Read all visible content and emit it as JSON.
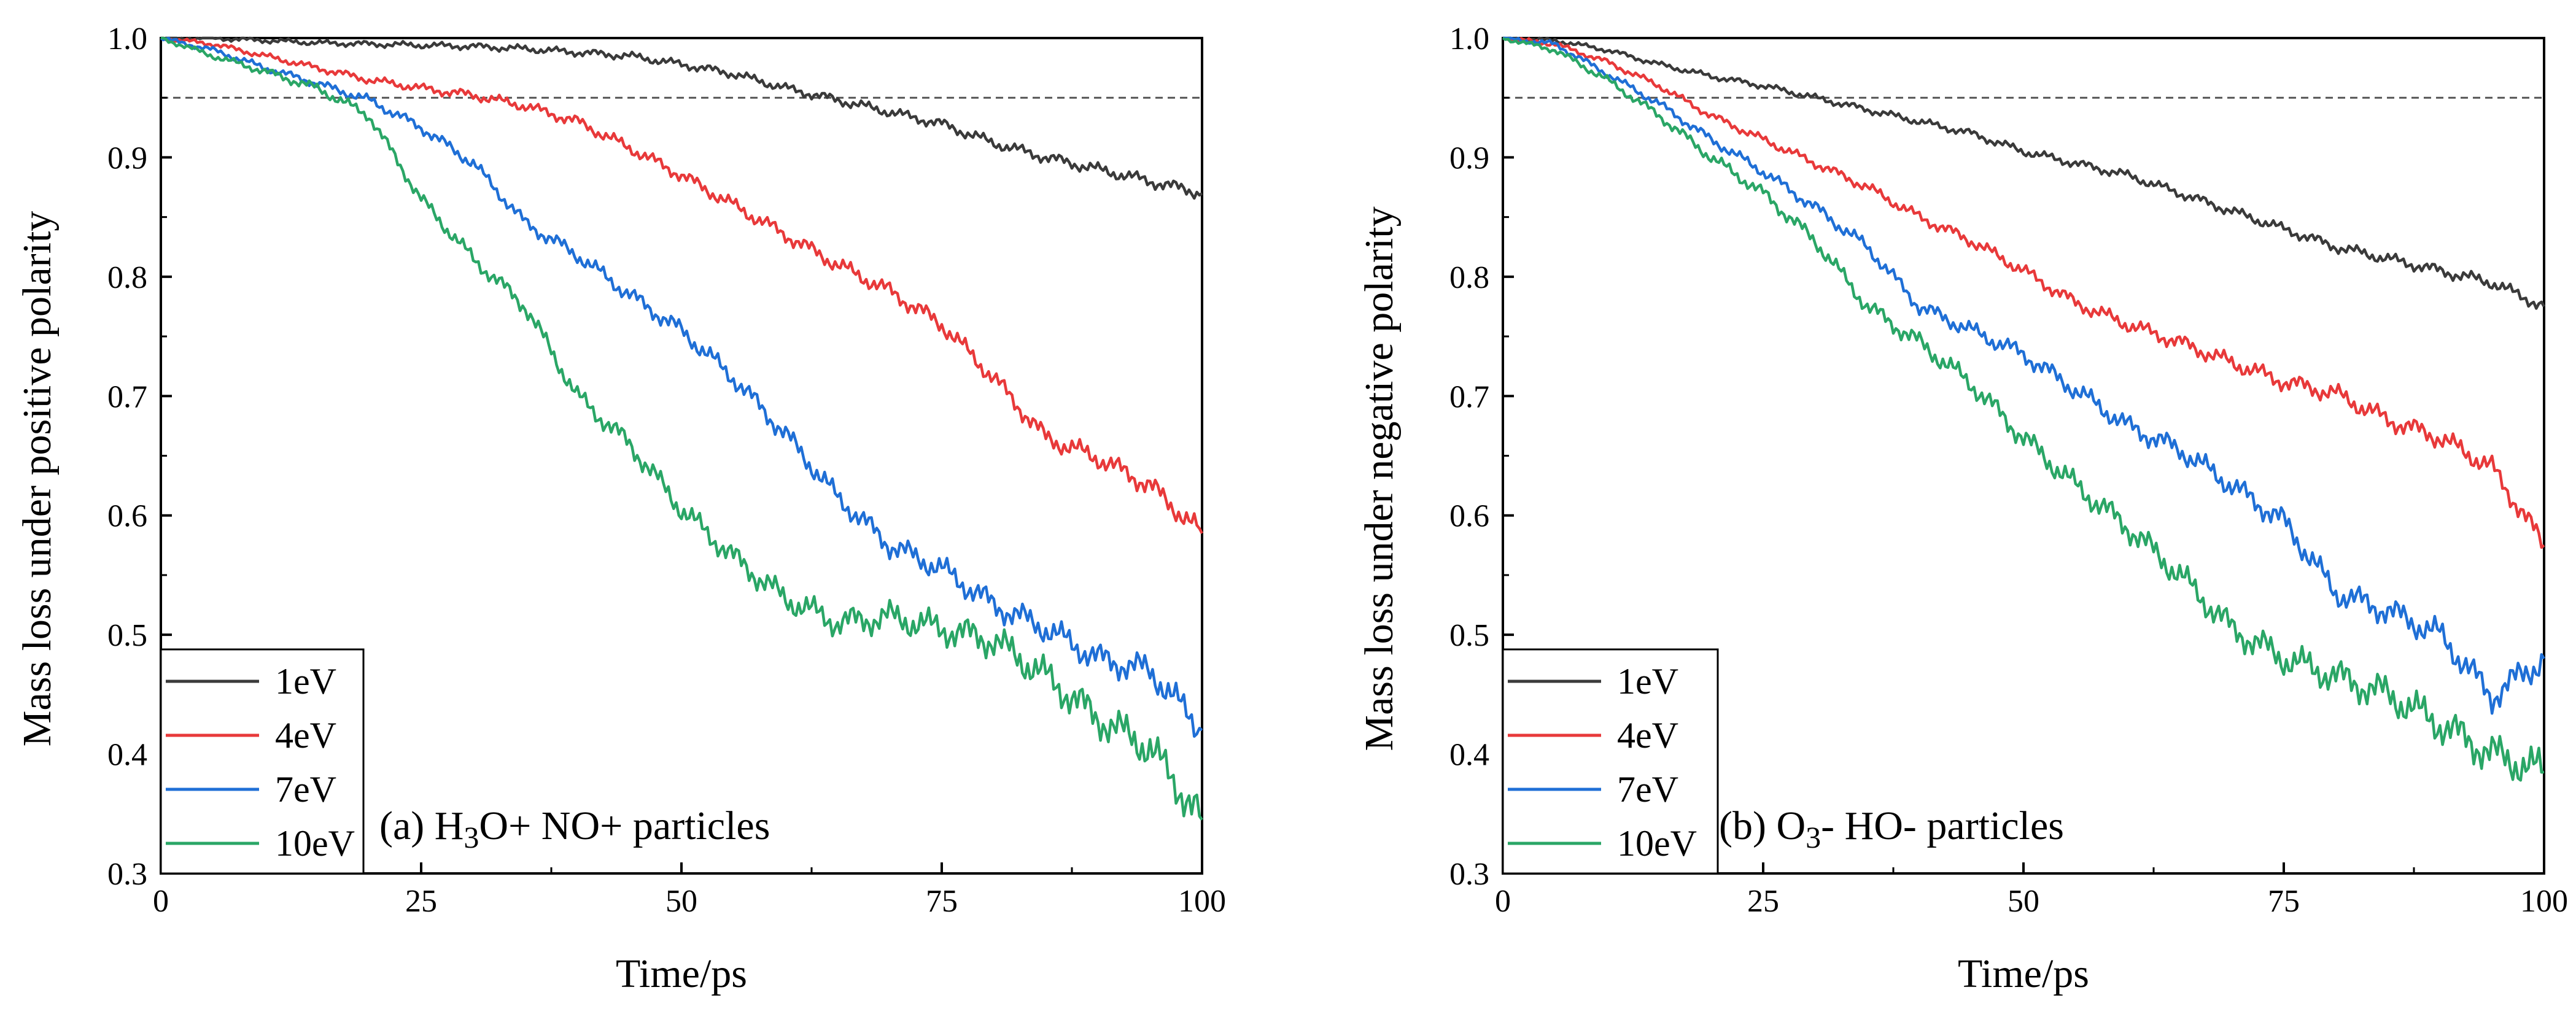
{
  "chart_data": [
    {
      "type": "line",
      "xlabel": "Time/ps",
      "ylabel": "Mass loss under positive polarity",
      "xlim": [
        0,
        100
      ],
      "ylim": [
        0.3,
        1.0
      ],
      "xticks": [
        "0",
        "25",
        "50",
        "75",
        "100"
      ],
      "yticks": [
        "0.3",
        "0.4",
        "0.5",
        "0.6",
        "0.7",
        "0.8",
        "0.9",
        "1.0"
      ],
      "reference_line": {
        "y": 0.95,
        "style": "dashed"
      },
      "annotation": {
        "prefix": "(a) H",
        "sub1": "3",
        "mid": "O+ NO+ particles"
      },
      "legend_position": "bottom-left",
      "x": [
        0,
        5,
        10,
        15,
        20,
        25,
        30,
        35,
        40,
        45,
        50,
        55,
        60,
        65,
        70,
        75,
        80,
        85,
        90,
        95,
        100
      ],
      "series": [
        {
          "name": "1eV",
          "color": "#3a3a3a",
          "values": [
            1.0,
            1.0,
            0.998,
            0.996,
            0.995,
            0.994,
            0.993,
            0.991,
            0.988,
            0.985,
            0.978,
            0.97,
            0.958,
            0.948,
            0.938,
            0.928,
            0.912,
            0.9,
            0.89,
            0.88,
            0.87
          ]
        },
        {
          "name": "4eV",
          "color": "#e8393a",
          "values": [
            1.0,
            0.995,
            0.985,
            0.975,
            0.965,
            0.958,
            0.952,
            0.943,
            0.93,
            0.908,
            0.885,
            0.86,
            0.835,
            0.81,
            0.788,
            0.76,
            0.715,
            0.665,
            0.648,
            0.625,
            0.585
          ]
        },
        {
          "name": "7eV",
          "color": "#1f6fd6",
          "values": [
            1.0,
            0.99,
            0.975,
            0.962,
            0.948,
            0.925,
            0.895,
            0.845,
            0.818,
            0.785,
            0.755,
            0.715,
            0.668,
            0.615,
            0.575,
            0.555,
            0.525,
            0.505,
            0.48,
            0.47,
            0.42
          ]
        },
        {
          "name": "10eV",
          "color": "#2aa666",
          "values": [
            1.0,
            0.985,
            0.972,
            0.958,
            0.935,
            0.865,
            0.815,
            0.775,
            0.7,
            0.66,
            0.605,
            0.565,
            0.53,
            0.51,
            0.515,
            0.505,
            0.495,
            0.465,
            0.43,
            0.405,
            0.345
          ]
        }
      ]
    },
    {
      "type": "line",
      "xlabel": "Time/ps",
      "ylabel": "Mass loss under negative polarity",
      "xlim": [
        0,
        100
      ],
      "ylim": [
        0.3,
        1.0
      ],
      "xticks": [
        "0",
        "25",
        "50",
        "75",
        "100"
      ],
      "yticks": [
        "0.3",
        "0.4",
        "0.5",
        "0.6",
        "0.7",
        "0.8",
        "0.9",
        "1.0"
      ],
      "reference_line": {
        "y": 0.95,
        "style": "dashed"
      },
      "annotation": {
        "prefix": "(b) O",
        "sub1": "3",
        "mid": "- HO- particles"
      },
      "legend_position": "bottom-left",
      "x": [
        0,
        5,
        10,
        15,
        20,
        25,
        30,
        35,
        40,
        45,
        50,
        55,
        60,
        65,
        70,
        75,
        80,
        85,
        90,
        95,
        100
      ],
      "series": [
        {
          "name": "1eV",
          "color": "#3a3a3a",
          "values": [
            1.0,
            0.998,
            0.99,
            0.978,
            0.968,
            0.96,
            0.95,
            0.94,
            0.93,
            0.92,
            0.905,
            0.895,
            0.885,
            0.87,
            0.855,
            0.84,
            0.825,
            0.815,
            0.805,
            0.795,
            0.775
          ]
        },
        {
          "name": "4eV",
          "color": "#e8393a",
          "values": [
            1.0,
            0.995,
            0.98,
            0.96,
            0.935,
            0.915,
            0.895,
            0.875,
            0.85,
            0.83,
            0.805,
            0.778,
            0.76,
            0.745,
            0.728,
            0.712,
            0.702,
            0.68,
            0.665,
            0.64,
            0.575
          ]
        },
        {
          "name": "7eV",
          "color": "#1f6fd6",
          "values": [
            1.0,
            0.995,
            0.97,
            0.945,
            0.915,
            0.888,
            0.858,
            0.825,
            0.775,
            0.755,
            0.735,
            0.705,
            0.675,
            0.655,
            0.625,
            0.595,
            0.535,
            0.52,
            0.5,
            0.448,
            0.48
          ]
        },
        {
          "name": "10eV",
          "color": "#2aa666",
          "values": [
            1.0,
            0.99,
            0.965,
            0.935,
            0.9,
            0.87,
            0.83,
            0.775,
            0.745,
            0.71,
            0.665,
            0.625,
            0.59,
            0.55,
            0.505,
            0.48,
            0.465,
            0.45,
            0.425,
            0.4,
            0.385
          ]
        }
      ]
    }
  ]
}
